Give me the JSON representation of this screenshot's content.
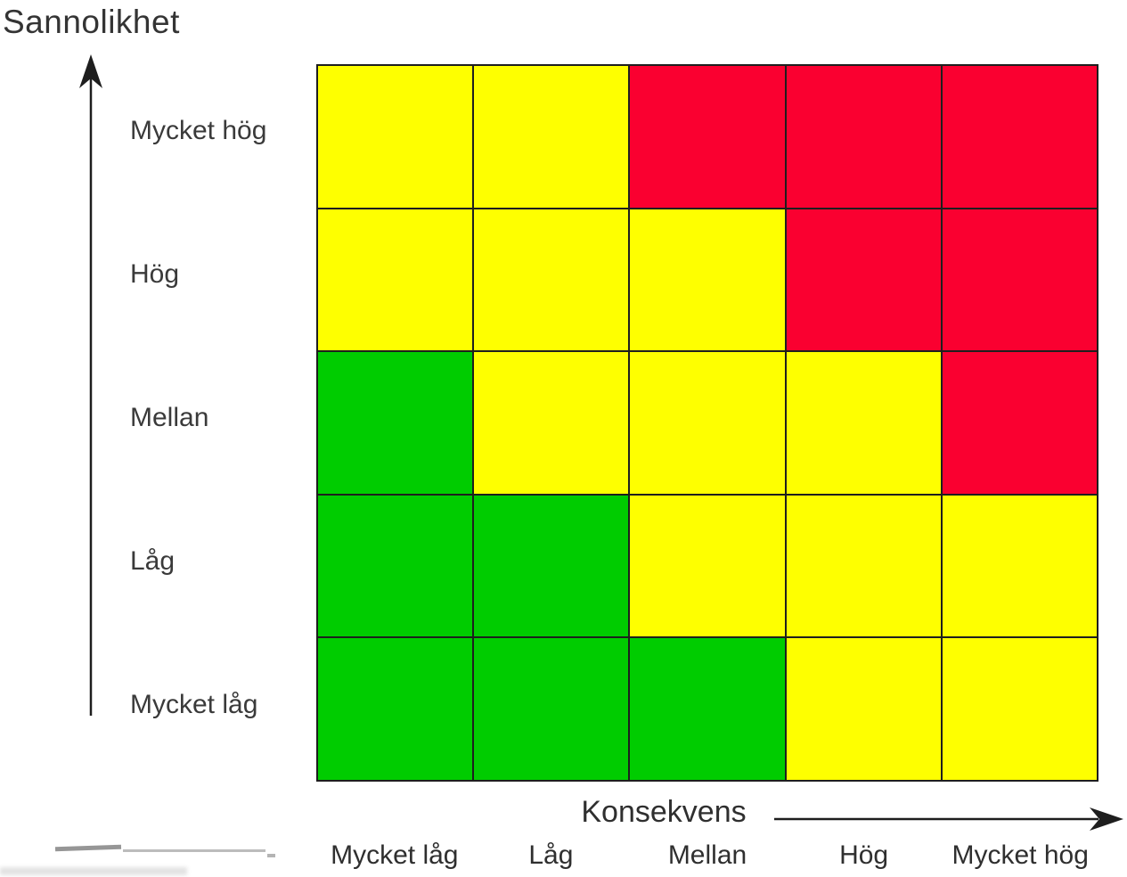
{
  "figure": {
    "y_axis_title": "Sannolikhet",
    "x_axis_title": "Konsekvens"
  },
  "chart_data": {
    "type": "heatmap",
    "title": "",
    "x": {
      "label": "Konsekvens",
      "categories": [
        "Mycket låg",
        "Låg",
        "Mellan",
        "Hög",
        "Mycket hög"
      ],
      "arrow_direction": "right"
    },
    "y": {
      "label": "Sannolikhet",
      "categories_top_to_bottom": [
        "Mycket hög",
        "Hög",
        "Mellan",
        "Låg",
        "Mycket låg"
      ],
      "arrow_direction": "up"
    },
    "risk_level_colors": {
      "low": "#00CC00",
      "medium": "#FEFF00",
      "high": "#FA0030"
    },
    "line_color": "#1E1E1E",
    "grid": true,
    "legend": "none",
    "cells_top_to_bottom": [
      [
        "medium",
        "medium",
        "high",
        "high",
        "high"
      ],
      [
        "medium",
        "medium",
        "medium",
        "high",
        "high"
      ],
      [
        "low",
        "medium",
        "medium",
        "medium",
        "high"
      ],
      [
        "low",
        "low",
        "medium",
        "medium",
        "medium"
      ],
      [
        "low",
        "low",
        "low",
        "medium",
        "medium"
      ]
    ]
  }
}
